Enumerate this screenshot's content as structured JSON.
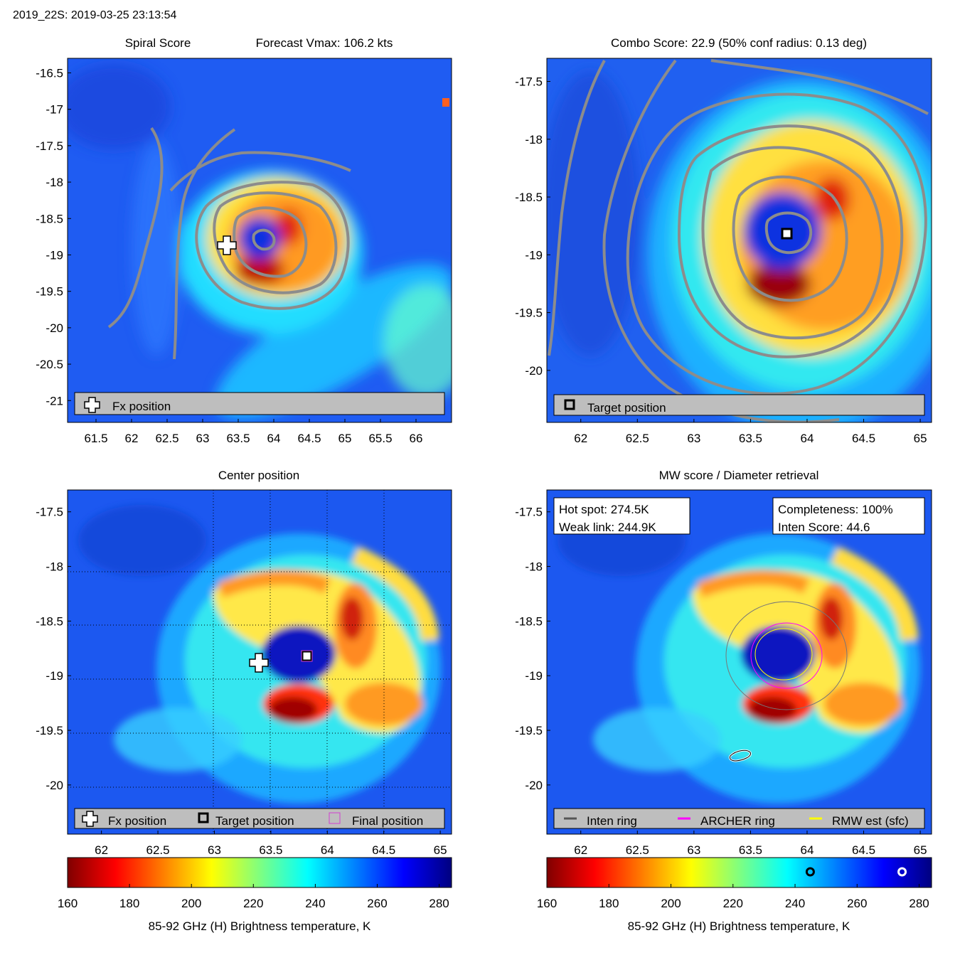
{
  "header": {
    "title": "2019_22S: 2019-03-25 23:13:54"
  },
  "panels": {
    "p1": {
      "title_left": "Spiral Score",
      "title_right": "Forecast Vmax: 106.2 kts",
      "legend": [
        "Fx position"
      ]
    },
    "p2": {
      "title": "Combo Score: 22.9  (50% conf radius: 0.13 deg)",
      "legend": [
        "Target position"
      ]
    },
    "p3": {
      "title": "Center position",
      "legend": [
        "Fx position",
        "Target position",
        "Final position"
      ]
    },
    "p4": {
      "title": "MW score / Diameter retrieval",
      "info_left": [
        "Hot spot: 274.5K",
        "Weak link: 244.9K"
      ],
      "info_right": [
        "Completeness: 100%",
        "Inten Score: 44.6"
      ],
      "legend": [
        "Inten ring",
        "ARCHER ring",
        "RMW est (sfc)"
      ]
    }
  },
  "colorbar": {
    "label": "85-92 GHz (H) Brightness temperature, K",
    "ticks": [
      "160",
      "180",
      "200",
      "220",
      "240",
      "260",
      "280"
    ],
    "range": [
      160,
      284
    ],
    "markers": [
      244.9,
      274.5
    ]
  },
  "colors": {
    "legend_bg": "#bebebe",
    "contour": "#8c8c8c",
    "inten_ring": "#555555",
    "archer_ring": "#ff00ff",
    "rmw_ring": "#ffff00"
  },
  "chart_data": [
    {
      "type": "heatmap",
      "title": "Spiral Score / Forecast Vmax: 106.2 kts",
      "xlim": [
        61.1,
        66.5
      ],
      "ylim": [
        -21.3,
        -16.3
      ],
      "xticks": [
        "61.5",
        "62",
        "62.5",
        "63",
        "63.5",
        "64",
        "64.5",
        "65",
        "65.5",
        "66"
      ],
      "yticks": [
        "-16.5",
        "-17",
        "-17.5",
        "-18",
        "-18.5",
        "-19",
        "-19.5",
        "-20",
        "-20.5",
        "-21"
      ],
      "fx_position": [
        63.4,
        -18.85
      ],
      "eye_center": [
        63.85,
        -18.8
      ]
    },
    {
      "type": "heatmap",
      "title": "Combo Score: 22.9 (50% conf radius: 0.13 deg)",
      "xlim": [
        61.7,
        65.1
      ],
      "ylim": [
        -20.45,
        -17.3
      ],
      "xticks": [
        "62",
        "62.5",
        "63",
        "63.5",
        "64",
        "64.5",
        "65"
      ],
      "yticks": [
        "-17.5",
        "-18",
        "-18.5",
        "-19",
        "-19.5",
        "-20"
      ],
      "target_position": [
        63.83,
        -18.78
      ]
    },
    {
      "type": "heatmap",
      "title": "Center position",
      "xlim": [
        61.7,
        65.1
      ],
      "ylim": [
        -20.45,
        -17.3
      ],
      "xticks": [
        "62",
        "62.5",
        "63",
        "63.5",
        "64",
        "64.5",
        "65"
      ],
      "yticks": [
        "-17.5",
        "-18",
        "-18.5",
        "-19",
        "-19.5",
        "-20"
      ],
      "fx_position": [
        63.4,
        -18.85
      ],
      "target_position": [
        63.83,
        -18.8
      ],
      "final_position": [
        63.83,
        -18.8
      ]
    },
    {
      "type": "heatmap",
      "title": "MW score / Diameter retrieval",
      "xlim": [
        61.7,
        65.1
      ],
      "ylim": [
        -20.45,
        -17.3
      ],
      "xticks": [
        "62",
        "62.5",
        "63",
        "63.5",
        "64",
        "64.5",
        "65"
      ],
      "yticks": [
        "-17.5",
        "-18",
        "-18.5",
        "-19",
        "-19.5",
        "-20"
      ],
      "hot_spot_K": 274.5,
      "weak_link_K": 244.9,
      "completeness_pct": 100,
      "inten_score": 44.6,
      "inten_ring_radius_deg": 0.55,
      "archer_ring_radius_deg": 0.32,
      "rmw_ring_radius_deg": 0.26
    }
  ]
}
